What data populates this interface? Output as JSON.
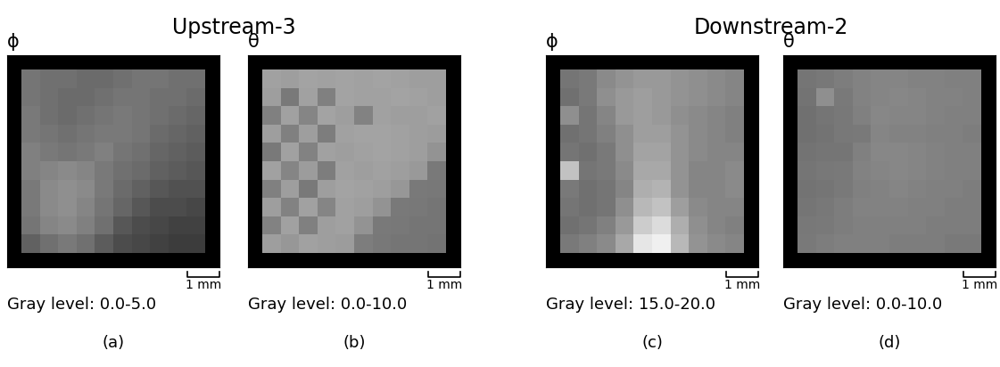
{
  "chart_data": [
    {
      "type": "heatmap",
      "group": "Upstream-3",
      "title": "ϕ",
      "xlabel": "Gray level: 0.0-5.0",
      "panel": "(a)",
      "color": "gray",
      "tick_labels": false,
      "color_range": [
        0.0,
        5.0
      ],
      "size_mm": 5.7,
      "scale_bar": {
        "length": 1,
        "label": "1 mm"
      },
      "cells": [
        [
          2.3,
          2.2,
          2.2,
          2.1,
          2.1,
          2.2,
          2.3,
          2.3,
          2.2,
          2.2
        ],
        [
          2.3,
          2.2,
          2.1,
          2.1,
          2.2,
          2.3,
          2.3,
          2.2,
          2.2,
          2.1
        ],
        [
          2.4,
          2.2,
          2.1,
          2.2,
          2.3,
          2.4,
          2.3,
          2.2,
          2.1,
          2.0
        ],
        [
          2.4,
          2.3,
          2.2,
          2.3,
          2.4,
          2.4,
          2.3,
          2.1,
          2.0,
          1.9
        ],
        [
          2.5,
          2.4,
          2.3,
          2.4,
          2.5,
          2.3,
          2.2,
          2.0,
          1.9,
          1.8
        ],
        [
          2.5,
          2.6,
          2.7,
          2.6,
          2.4,
          2.2,
          2.1,
          1.9,
          1.8,
          1.7
        ],
        [
          2.4,
          2.7,
          2.8,
          2.7,
          2.4,
          2.1,
          1.9,
          1.7,
          1.6,
          1.6
        ],
        [
          2.4,
          2.7,
          2.8,
          2.6,
          2.3,
          2.0,
          1.7,
          1.5,
          1.5,
          1.4
        ],
        [
          2.3,
          2.6,
          2.7,
          2.5,
          2.2,
          1.7,
          1.5,
          1.4,
          1.3,
          1.3
        ],
        [
          1.9,
          2.2,
          2.4,
          2.2,
          1.8,
          1.5,
          1.4,
          1.3,
          1.2,
          1.2
        ]
      ]
    },
    {
      "type": "heatmap",
      "group": "Upstream-3",
      "title": "θ",
      "xlabel": "Gray level: 0.0-10.0",
      "panel": "(b)",
      "color": "gray",
      "tick_labels": false,
      "color_range": [
        0.0,
        10.0
      ],
      "size_mm": 5.7,
      "scale_bar": {
        "length": 1,
        "label": "1 mm"
      },
      "cells": [
        [
          6.3,
          6.2,
          6.4,
          6.3,
          6.4,
          6.3,
          6.4,
          6.3,
          6.2,
          6.2
        ],
        [
          6.2,
          4.8,
          6.3,
          5.0,
          6.4,
          6.3,
          6.3,
          6.4,
          6.3,
          6.2
        ],
        [
          5.0,
          6.3,
          5.2,
          6.4,
          6.2,
          5.1,
          6.3,
          6.2,
          6.2,
          6.3
        ],
        [
          6.2,
          5.0,
          6.2,
          4.9,
          6.3,
          6.4,
          6.4,
          6.3,
          6.2,
          6.1
        ],
        [
          4.8,
          6.3,
          5.1,
          6.3,
          6.2,
          6.3,
          6.4,
          6.3,
          6.2,
          5.8
        ],
        [
          6.3,
          5.2,
          6.1,
          4.9,
          6.3,
          6.2,
          6.3,
          6.2,
          6.0,
          4.8
        ],
        [
          5.0,
          6.2,
          4.8,
          6.2,
          6.4,
          6.3,
          6.2,
          5.9,
          4.8,
          4.7
        ],
        [
          6.2,
          5.1,
          6.3,
          5.2,
          6.3,
          6.2,
          5.8,
          4.8,
          4.7,
          4.6
        ],
        [
          5.1,
          6.3,
          5.0,
          6.2,
          6.3,
          5.8,
          4.8,
          4.7,
          4.6,
          4.6
        ],
        [
          6.2,
          5.9,
          6.3,
          6.2,
          6.1,
          4.9,
          4.7,
          4.6,
          4.6,
          4.5
        ]
      ]
    },
    {
      "type": "heatmap",
      "group": "Downstream-2",
      "title": "ϕ",
      "xlabel": "Gray level: 15.0-20.0",
      "panel": "(c)",
      "color": "gray",
      "tick_labels": false,
      "color_range": [
        15.0,
        20.0
      ],
      "size_mm": 5.7,
      "scale_bar": {
        "length": 1,
        "label": "1 mm"
      },
      "cells": [
        [
          17.3,
          17.4,
          17.7,
          17.9,
          18.0,
          18.0,
          17.9,
          17.8,
          17.7,
          17.6
        ],
        [
          17.2,
          17.4,
          17.8,
          18.0,
          18.1,
          18.0,
          17.9,
          17.8,
          17.7,
          17.6
        ],
        [
          17.8,
          17.3,
          17.6,
          18.0,
          18.1,
          18.0,
          17.8,
          17.7,
          17.6,
          17.5
        ],
        [
          17.2,
          17.3,
          17.5,
          17.8,
          18.1,
          18.1,
          17.9,
          17.7,
          17.6,
          17.5
        ],
        [
          17.3,
          17.2,
          17.4,
          17.8,
          18.2,
          18.2,
          17.9,
          17.7,
          17.6,
          17.6
        ],
        [
          18.8,
          17.3,
          17.4,
          17.7,
          18.3,
          18.3,
          17.9,
          17.6,
          17.6,
          17.7
        ],
        [
          17.4,
          17.2,
          17.3,
          17.6,
          18.4,
          18.5,
          17.9,
          17.6,
          17.6,
          17.7
        ],
        [
          17.3,
          17.2,
          17.3,
          17.8,
          18.6,
          18.8,
          18.1,
          17.7,
          17.6,
          17.6
        ],
        [
          17.2,
          17.3,
          17.5,
          18.0,
          19.0,
          19.3,
          18.4,
          17.8,
          17.6,
          17.5
        ],
        [
          17.4,
          17.5,
          17.7,
          18.3,
          19.5,
          19.7,
          18.6,
          17.9,
          17.7,
          17.6
        ]
      ]
    },
    {
      "type": "heatmap",
      "group": "Downstream-2",
      "title": "θ",
      "xlabel": "Gray level: 0.0-10.0",
      "panel": "(d)",
      "color": "gray",
      "tick_labels": false,
      "color_range": [
        0.0,
        10.0
      ],
      "size_mm": 5.7,
      "scale_bar": {
        "length": 1,
        "label": "1 mm"
      },
      "cells": [
        [
          4.6,
          4.7,
          4.9,
          5.1,
          5.2,
          5.2,
          5.1,
          5.1,
          5.0,
          5.0
        ],
        [
          4.5,
          5.6,
          4.8,
          5.1,
          5.2,
          5.3,
          5.2,
          5.1,
          5.1,
          5.0
        ],
        [
          4.4,
          4.6,
          4.7,
          5.0,
          5.3,
          5.2,
          5.2,
          5.1,
          5.0,
          5.0
        ],
        [
          4.4,
          4.5,
          4.7,
          4.8,
          5.2,
          5.1,
          5.1,
          5.0,
          5.0,
          4.9
        ],
        [
          4.5,
          4.6,
          4.6,
          5.0,
          5.3,
          5.3,
          5.2,
          5.1,
          5.0,
          5.0
        ],
        [
          4.6,
          4.7,
          4.8,
          5.1,
          5.2,
          5.3,
          5.2,
          5.1,
          5.0,
          5.0
        ],
        [
          4.5,
          4.6,
          4.8,
          5.0,
          5.1,
          5.2,
          5.1,
          5.0,
          5.0,
          4.9
        ],
        [
          4.6,
          4.7,
          4.9,
          5.1,
          5.1,
          5.1,
          5.0,
          5.0,
          4.9,
          4.9
        ],
        [
          4.7,
          4.8,
          4.9,
          5.0,
          5.0,
          5.0,
          5.0,
          4.9,
          4.9,
          4.9
        ],
        [
          4.8,
          4.9,
          5.0,
          5.0,
          5.0,
          4.9,
          4.9,
          4.9,
          4.8,
          4.8
        ]
      ]
    }
  ]
}
